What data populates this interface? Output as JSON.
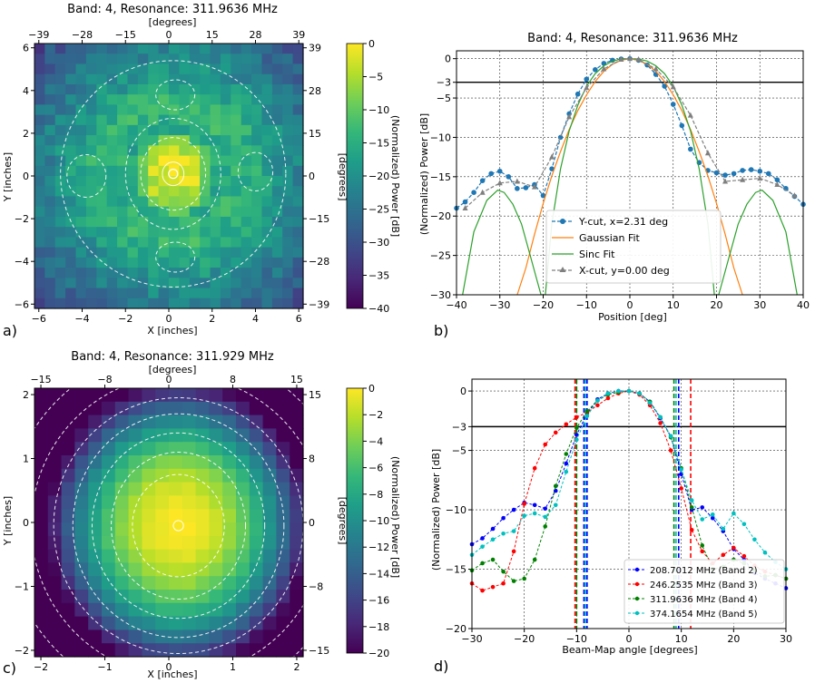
{
  "panels": [
    {
      "letter": "a)",
      "title": "Band: 4, Resonance: 311.9636 MHz"
    },
    {
      "letter": "b)",
      "title": "Band: 4, Resonance: 311.9636 MHz"
    },
    {
      "letter": "c)",
      "title": "Band: 4, Resonance: 311.929 MHz"
    },
    {
      "letter": "d)",
      "title": ""
    }
  ],
  "colors": {
    "viridis": [
      "#440154",
      "#482878",
      "#3e4a89",
      "#31688e",
      "#26828e",
      "#1f9e89",
      "#35b779",
      "#6ece58",
      "#b5de2b",
      "#fde725"
    ],
    "ycut": "#1f77b4",
    "gauss": "#ff7f0e",
    "sinc": "#2ca02c",
    "xcut": "#7f7f7f",
    "band2": "#0000ff",
    "band3": "#ff0000",
    "band4": "#008000",
    "band5": "#00c0c0"
  },
  "chart_data": [
    {
      "id": "a",
      "type": "heatmap",
      "title": "Band: 4, Resonance: 311.9636 MHz",
      "xlabel": "X [inches]",
      "ylabel": "Y [inches]",
      "top_label": "[degrees]",
      "right_label": "[degrees]",
      "xlim": [
        -6.2,
        6.2
      ],
      "ylim": [
        -6.2,
        6.2
      ],
      "xticks": [
        "−6",
        "−4",
        "−2",
        "0",
        "2",
        "4",
        "6"
      ],
      "yticks": [
        "−6",
        "−4",
        "−2",
        "0",
        "2",
        "4",
        "6"
      ],
      "top_ticks": [
        "−39",
        "−28",
        "−15",
        "0",
        "15",
        "28",
        "39"
      ],
      "right_ticks": [
        "−39",
        "−28",
        "−15",
        "0",
        "15",
        "28",
        "39"
      ],
      "colorbar": {
        "label": "(Normalized) Power [dB]",
        "range": [
          -40,
          0
        ],
        "ticks": [
          "0",
          "−5",
          "−10",
          "−15",
          "−20",
          "−25",
          "−30",
          "−35",
          "−40"
        ]
      },
      "peak": [
        0.2,
        0.1
      ]
    },
    {
      "id": "b",
      "type": "line",
      "title": "Band: 4, Resonance: 311.9636 MHz",
      "xlabel": "Position [deg]",
      "ylabel": "(Normalized) Power [dB]",
      "xlim": [
        -40,
        40
      ],
      "ylim": [
        -30,
        1
      ],
      "xticks": [
        "−40",
        "−30",
        "−20",
        "−10",
        "0",
        "10",
        "20",
        "30",
        "40"
      ],
      "yticks": [
        "0",
        "−3",
        "−5",
        "−10",
        "−15",
        "−20",
        "−25",
        "−30"
      ],
      "hline": -3,
      "series": [
        {
          "name": "Y-cut, x=2.31 deg",
          "style": "dashed-circle",
          "x": [
            -40,
            -38,
            -36,
            -34,
            -32,
            -30,
            -28,
            -26,
            -24,
            -22,
            -20,
            -18,
            -16,
            -14,
            -12,
            -10,
            -8,
            -6,
            -4,
            -2,
            0,
            2,
            4,
            6,
            8,
            10,
            12,
            14,
            16,
            18,
            20,
            22,
            24,
            26,
            28,
            30,
            32,
            34,
            36,
            38,
            40
          ],
          "y": [
            -19,
            -18.2,
            -17,
            -15.5,
            -14.6,
            -14.3,
            -15,
            -16.5,
            -16.4,
            -16,
            -17.4,
            -14,
            -10,
            -7,
            -4.5,
            -2.6,
            -1.4,
            -0.6,
            -0.2,
            -0.05,
            0,
            -0.2,
            -0.8,
            -2,
            -3.5,
            -5.8,
            -8.5,
            -11.5,
            -13.2,
            -14.2,
            -14.5,
            -14.8,
            -14.6,
            -14.2,
            -14.1,
            -14.3,
            -14.6,
            -15.4,
            -16.5,
            -17.5,
            -18.5
          ]
        },
        {
          "name": "Gaussian Fit",
          "style": "solid",
          "x": [
            -26,
            -24,
            -22,
            -20,
            -18,
            -16,
            -14,
            -12,
            -10,
            -8,
            -6,
            -4,
            -2,
            0,
            2,
            4,
            6,
            8,
            10,
            12,
            14,
            16,
            18,
            20,
            22,
            24,
            26
          ],
          "y": [
            -30,
            -26.6,
            -22.3,
            -18.4,
            -14.9,
            -11.8,
            -9,
            -6.6,
            -4.6,
            -2.9,
            -1.6,
            -0.7,
            -0.2,
            0,
            -0.2,
            -0.7,
            -1.6,
            -2.9,
            -4.6,
            -6.6,
            -9,
            -11.8,
            -14.9,
            -18.4,
            -22.3,
            -26.6,
            -30
          ]
        },
        {
          "name": "Sinc Fit",
          "style": "solid",
          "x": [
            -38.6,
            -36,
            -33,
            -30.5,
            -29,
            -27,
            -25,
            -23,
            -21.5,
            -20.5,
            -19.5,
            -18,
            -16,
            -14,
            -12,
            -10,
            -8,
            -6,
            -4,
            -2,
            0,
            2,
            4,
            6,
            8,
            10,
            12,
            14,
            16,
            18,
            19.5,
            20.5,
            21.5,
            23,
            25,
            27,
            29,
            30.5,
            33,
            36,
            38.6
          ],
          "y": [
            -30,
            -22,
            -18,
            -16.7,
            -17,
            -18.5,
            -21,
            -25,
            -28,
            -30,
            -30,
            -21,
            -14,
            -9.2,
            -5.9,
            -3.5,
            -1.9,
            -0.9,
            -0.3,
            -0.05,
            0,
            -0.05,
            -0.3,
            -0.9,
            -1.9,
            -3.5,
            -5.9,
            -9.2,
            -14,
            -21,
            -30,
            -30,
            -28,
            -25,
            -21,
            -18.5,
            -17,
            -16.7,
            -18,
            -22,
            -30
          ]
        },
        {
          "name": "X-cut, y=0.00 deg",
          "style": "dashed-triangle",
          "x": [
            -38,
            -34,
            -30,
            -26,
            -22,
            -18,
            -14,
            -10,
            -6,
            -2,
            0,
            2,
            6,
            10,
            14,
            18,
            22,
            26,
            30,
            34,
            38
          ],
          "y": [
            -19,
            -17,
            -15.8,
            -15.6,
            -16.3,
            -12.5,
            -7.4,
            -3.7,
            -1.3,
            -0.1,
            0,
            -0.1,
            -1.3,
            -3.6,
            -7.2,
            -12,
            -15.6,
            -15.4,
            -15.2,
            -16,
            -17.4
          ]
        }
      ]
    },
    {
      "id": "c",
      "type": "heatmap",
      "title": "Band: 4, Resonance: 311.929 MHz",
      "xlabel": "X [inches]",
      "ylabel": "Y [inches]",
      "top_label": "[degrees]",
      "right_label": "[degrees]",
      "xlim": [
        -2.1,
        2.1
      ],
      "ylim": [
        -2.1,
        2.1
      ],
      "xticks": [
        "−2",
        "−1",
        "0",
        "1",
        "2"
      ],
      "yticks": [
        "−2",
        "−1",
        "0",
        "1",
        "2"
      ],
      "top_ticks": [
        "−15",
        "−8",
        "0",
        "8",
        "15"
      ],
      "right_ticks": [
        "−15",
        "−8",
        "0",
        "8",
        "15"
      ],
      "colorbar": {
        "label": "(Normalized) Power [dB]",
        "range": [
          -20,
          0
        ],
        "ticks": [
          "0",
          "−2",
          "−4",
          "−6",
          "−8",
          "−10",
          "−12",
          "−14",
          "−16",
          "−18",
          "−20"
        ]
      },
      "peak": [
        0.15,
        -0.05
      ]
    },
    {
      "id": "d",
      "type": "line",
      "title": "",
      "xlabel": "Beam-Map angle [degrees]",
      "ylabel": "(Normalized) Power [dB]",
      "xlim": [
        -30,
        30
      ],
      "ylim": [
        -20,
        1
      ],
      "xticks": [
        "−30",
        "−20",
        "−10",
        "0",
        "10",
        "20",
        "30"
      ],
      "yticks": [
        "0",
        "−3",
        "−5",
        "−10",
        "−15",
        "−20"
      ],
      "hline": -3,
      "vlines": [
        {
          "x": -10.3,
          "band": "band3"
        },
        {
          "x": -10.0,
          "band": "band4"
        },
        {
          "x": -8.6,
          "band": "band2"
        },
        {
          "x": -8.3,
          "band": "band5"
        },
        {
          "x": -8.0,
          "band": "band2"
        },
        {
          "x": 8.6,
          "band": "band4"
        },
        {
          "x": 9.0,
          "band": "band5"
        },
        {
          "x": 9.5,
          "band": "band2"
        },
        {
          "x": 11.8,
          "band": "band3"
        }
      ],
      "series": [
        {
          "name": "208.7012 MHz (Band 2)",
          "band": "band2",
          "x": [
            -30,
            -28,
            -26,
            -24,
            -22,
            -20,
            -18,
            -16,
            -14,
            -12,
            -10,
            -8,
            -6,
            -4,
            -2,
            0,
            2,
            4,
            6,
            8,
            10,
            12,
            14,
            16,
            18,
            20,
            22,
            24,
            26,
            28,
            30
          ],
          "y": [
            -12.9,
            -12.4,
            -11.6,
            -10.7,
            -10,
            -9.4,
            -9.6,
            -9.9,
            -8.4,
            -6.1,
            -3.7,
            -1.9,
            -0.7,
            -0.2,
            0,
            0,
            -0.2,
            -0.9,
            -2.3,
            -3.8,
            -7,
            -10,
            -9.8,
            -10.7,
            -11.8,
            -13.3,
            -14.2,
            -15.3,
            -15.8,
            -16.2,
            -16.6
          ]
        },
        {
          "name": "246.2535 MHz (Band 3)",
          "band": "band3",
          "x": [
            -30,
            -28,
            -26,
            -24,
            -22,
            -20,
            -18,
            -16,
            -14,
            -12,
            -10,
            -8,
            -6,
            -4,
            -2,
            0,
            2,
            4,
            6,
            8,
            10,
            12,
            14,
            16,
            18,
            20,
            22,
            24,
            26,
            28,
            30
          ],
          "y": [
            -16.2,
            -16.8,
            -16.5,
            -16.2,
            -13.5,
            -9.5,
            -6.5,
            -4.5,
            -3.5,
            -2.8,
            -2.2,
            -1.8,
            -1.2,
            -0.6,
            -0.2,
            0,
            -0.3,
            -1.2,
            -2.7,
            -5,
            -8.2,
            -11.7,
            -13.5,
            -14.5,
            -13.8,
            -13.2,
            -13.9,
            -14.7,
            -15.2,
            -15.5,
            -15.8
          ]
        },
        {
          "name": "311.9636 MHz (Band 4)",
          "band": "band4",
          "x": [
            -30,
            -28,
            -26,
            -24,
            -22,
            -20,
            -18,
            -16,
            -14,
            -12,
            -10,
            -8,
            -6,
            -4,
            -2,
            0,
            2,
            4,
            6,
            8,
            10,
            12,
            14,
            16,
            18,
            20,
            22,
            24,
            26,
            28,
            30
          ],
          "y": [
            -15.1,
            -14.5,
            -14.2,
            -15.2,
            -16,
            -15.8,
            -14.2,
            -11.4,
            -8,
            -5.3,
            -3.1,
            -1.7,
            -0.8,
            -0.3,
            -0.1,
            0,
            -0.2,
            -0.9,
            -2.2,
            -3.9,
            -6.5,
            -9.8,
            -13,
            -15,
            -14.8,
            -14.2,
            -14.5,
            -15.1,
            -15.6,
            -15.5,
            -15.8
          ]
        },
        {
          "name": "374.1654 MHz (Band 5)",
          "band": "band5",
          "x": [
            -30,
            -28,
            -26,
            -24,
            -22,
            -20,
            -18,
            -16,
            -14,
            -12,
            -10,
            -8,
            -6,
            -4,
            -2,
            0,
            2,
            4,
            6,
            8,
            10,
            12,
            14,
            16,
            18,
            20,
            22,
            24,
            26,
            28,
            30
          ],
          "y": [
            -13.8,
            -13.1,
            -12.5,
            -12,
            -11.8,
            -10.5,
            -10.3,
            -10.6,
            -9.6,
            -6.8,
            -4.1,
            -2.1,
            -0.8,
            -0.2,
            0,
            0,
            -0.2,
            -1,
            -2.2,
            -3.8,
            -6.6,
            -9.2,
            -10.8,
            -10.4,
            -11.6,
            -10.3,
            -11.2,
            -12.5,
            -13.6,
            -14.4,
            -15
          ]
        }
      ]
    }
  ]
}
